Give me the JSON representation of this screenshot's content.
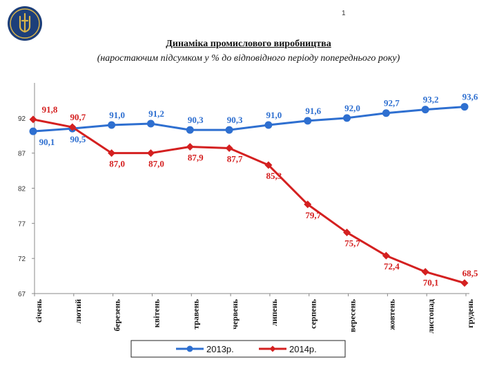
{
  "page": {
    "page_number": "1",
    "logo_icon": "trident-emblem-icon"
  },
  "chart_data": {
    "type": "line",
    "title": "Динаміка промислового виробництва",
    "subtitle": "(наростаючим підсумком у % до відповідного періоду попереднього року)",
    "categories": [
      "січень",
      "лютий",
      "березень",
      "квітень",
      "травень",
      "червень",
      "липень",
      "серпень",
      "вересень",
      "жовтень",
      "листопад",
      "грудень"
    ],
    "y_ticks": [
      "67",
      "72",
      "77",
      "82",
      "87",
      "92"
    ],
    "ylim": [
      67,
      97
    ],
    "grid": false,
    "legend_position": "bottom",
    "series": [
      {
        "name": "2013р.",
        "color": "#2e6fd0",
        "marker": "circle",
        "values": [
          90.1,
          90.5,
          91.0,
          91.2,
          90.3,
          90.3,
          91.0,
          91.6,
          92.0,
          92.7,
          93.2,
          93.6
        ],
        "labels": [
          "90,1",
          "90,5",
          "91,0",
          "91,2",
          "90,3",
          "90,3",
          "91,0",
          "91,6",
          "92,0",
          "92,7",
          "93,2",
          "93,6"
        ]
      },
      {
        "name": "2014р.",
        "color": "#d42020",
        "marker": "diamond",
        "values": [
          91.8,
          90.7,
          87.0,
          87.0,
          87.9,
          87.7,
          85.3,
          79.7,
          75.7,
          72.4,
          70.1,
          68.5
        ],
        "labels": [
          "91,8",
          "90,7",
          "87,0",
          "87,0",
          "87,9",
          "87,7",
          "85,3",
          "79,7",
          "75,7",
          "72,4",
          "70,1",
          "68,5"
        ]
      }
    ]
  }
}
